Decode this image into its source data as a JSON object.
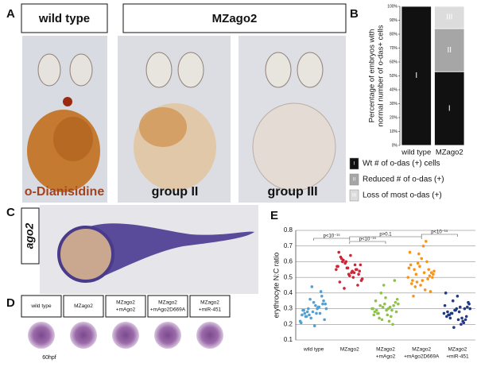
{
  "panel_labels": [
    "A",
    "B",
    "C",
    "D",
    "E"
  ],
  "panel_a": {
    "headers": [
      "wild type",
      "MZago2"
    ],
    "captions": [
      "o-Dianisidine",
      "group II",
      "group III"
    ]
  },
  "panel_c": {
    "label": "ago2"
  },
  "panel_d": {
    "headers": [
      [
        "wild type"
      ],
      [
        "MZago2"
      ],
      [
        "MZago2",
        "+mAgo2"
      ],
      [
        "MZago2",
        "+mAgo2D669A"
      ],
      [
        "MZago2",
        "+miR-451"
      ]
    ],
    "stage": "60hpf"
  },
  "chart_data": [
    {
      "type": "stacked_bar",
      "y_label": [
        "Percentage of embryos with",
        "normal number of o-das+ cells"
      ],
      "categories": [
        "wild type",
        "MZago2"
      ],
      "series": [
        {
          "name": "Wt # of o-das (+) cells",
          "label": "I",
          "color": "#111111",
          "values": [
            100,
            53
          ]
        },
        {
          "name": "Reduced # of o-das (+)",
          "label": "II",
          "color": "#a6a6a6",
          "values": [
            0,
            31
          ]
        },
        {
          "name": "Loss of most o-das (+)",
          "label": "III",
          "color": "#dcdcdc",
          "values": [
            0,
            16
          ]
        }
      ],
      "ylim": [
        0,
        100
      ],
      "yticks": [
        {
          "value": 0,
          "label": "0%"
        },
        {
          "value": 10,
          "label": "10%"
        },
        {
          "value": 20,
          "label": "20%"
        },
        {
          "value": 30,
          "label": "30%"
        },
        {
          "value": 40,
          "label": "40%"
        },
        {
          "value": 50,
          "label": "50%"
        },
        {
          "value": 60,
          "label": "60%"
        },
        {
          "value": 70,
          "label": "70%"
        },
        {
          "value": 80,
          "label": "80%"
        },
        {
          "value": 90,
          "label": "90%"
        },
        {
          "value": 100,
          "label": "100%"
        }
      ]
    },
    {
      "type": "strip",
      "y_label": "erythrocyte N:C ratio",
      "categories": [
        [
          "wild type"
        ],
        [
          "MZago2"
        ],
        [
          "MZago2",
          "+mAgo2"
        ],
        [
          "MZago2",
          "+mAgo2D669A"
        ],
        [
          "MZago2",
          "+miR-451"
        ]
      ],
      "colors": [
        "#4ba3dc",
        "#c8283a",
        "#8cc63f",
        "#f7941d",
        "#1f3a8a"
      ],
      "values": [
        [
          0.22,
          0.25,
          0.28,
          0.31,
          0.33,
          0.27,
          0.24,
          0.3,
          0.35,
          0.29,
          0.26,
          0.32,
          0.38,
          0.21,
          0.28,
          0.34,
          0.27,
          0.3,
          0.25,
          0.44,
          0.31,
          0.23,
          0.29,
          0.36,
          0.27,
          0.33,
          0.26,
          0.3,
          0.19,
          0.41
        ],
        [
          0.55,
          0.6,
          0.52,
          0.58,
          0.48,
          0.63,
          0.56,
          0.5,
          0.54,
          0.66,
          0.59,
          0.53,
          0.45,
          0.57,
          0.61,
          0.51,
          0.55,
          0.49,
          0.62,
          0.56,
          0.53,
          0.58,
          0.47,
          0.6,
          0.54,
          0.52,
          0.57,
          0.43,
          0.64,
          0.55
        ],
        [
          0.3,
          0.27,
          0.33,
          0.25,
          0.36,
          0.29,
          0.31,
          0.22,
          0.34,
          0.28,
          0.4,
          0.26,
          0.32,
          0.3,
          0.24,
          0.37,
          0.29,
          0.33,
          0.27,
          0.45,
          0.31,
          0.28,
          0.35,
          0.23,
          0.3,
          0.48,
          0.26,
          0.32,
          0.29,
          0.2
        ],
        [
          0.5,
          0.55,
          0.45,
          0.6,
          0.52,
          0.48,
          0.65,
          0.42,
          0.53,
          0.58,
          0.47,
          0.7,
          0.51,
          0.56,
          0.44,
          0.62,
          0.49,
          0.54,
          0.38,
          0.57,
          0.73,
          0.5,
          0.46,
          0.59,
          0.53,
          0.41,
          0.66,
          0.52,
          0.48,
          0.55
        ],
        [
          0.27,
          0.24,
          0.3,
          0.22,
          0.33,
          0.26,
          0.29,
          0.2,
          0.31,
          0.25,
          0.35,
          0.28,
          0.23,
          0.32,
          0.27,
          0.38,
          0.21,
          0.3,
          0.26,
          0.29,
          0.24,
          0.34,
          0.28,
          0.18,
          0.31,
          0.25,
          0.4,
          0.27,
          0.23,
          0.3
        ]
      ],
      "ylim": [
        0.1,
        0.8
      ],
      "yticks": [
        0.1,
        0.2,
        0.3,
        0.4,
        0.5,
        0.6,
        0.7,
        0.8
      ],
      "grid": true,
      "annotations": [
        "p<10⁻¹⁵",
        "p<10⁻¹⁵",
        "p>0.1",
        "p<10⁻¹⁵"
      ]
    }
  ]
}
